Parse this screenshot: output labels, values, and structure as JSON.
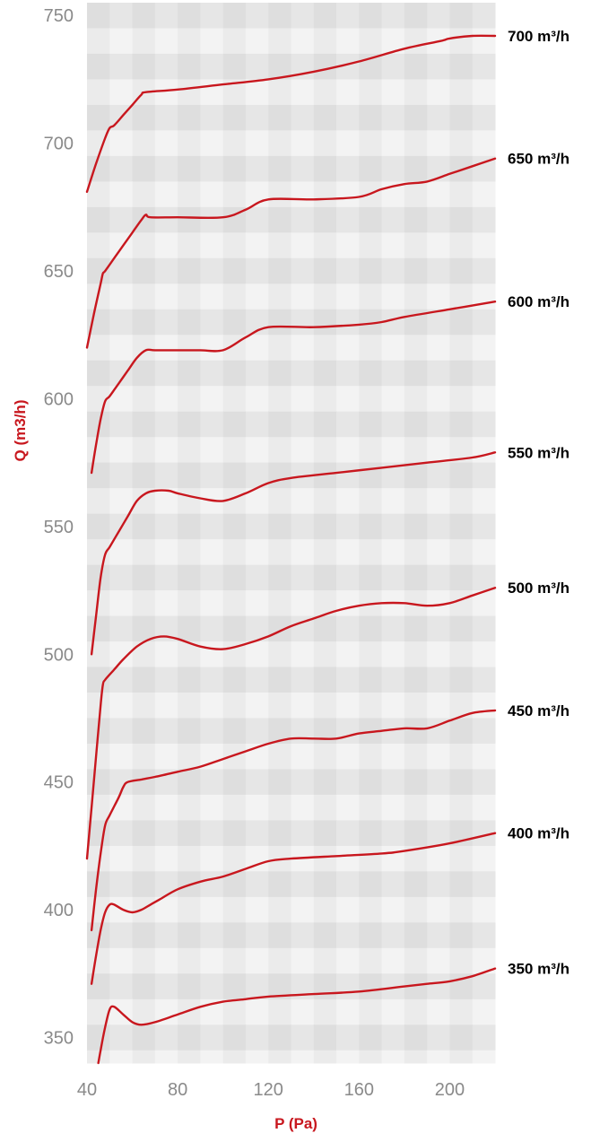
{
  "chart_data": {
    "type": "line",
    "title": "",
    "xlabel": "P (Pa)",
    "ylabel": "Q (m3/h)",
    "xlim": [
      40,
      220
    ],
    "ylim": [
      340,
      755
    ],
    "x_ticks": [
      40,
      80,
      120,
      160,
      200
    ],
    "y_ticks": [
      350,
      400,
      450,
      500,
      550,
      600,
      650,
      700,
      750
    ],
    "grid": true,
    "colors": {
      "line": "#c8171e",
      "axis_title": "#c8171e",
      "grid_dark": "#e2e2e2",
      "grid_light": "#f3f3f3"
    },
    "series": [
      {
        "name": "700 m³/h",
        "points": [
          [
            40,
            681
          ],
          [
            44,
            692
          ],
          [
            48,
            702
          ],
          [
            50,
            706
          ],
          [
            52,
            707
          ],
          [
            56,
            711
          ],
          [
            60,
            715
          ],
          [
            64,
            719
          ],
          [
            66,
            720
          ],
          [
            80,
            721
          ],
          [
            100,
            723
          ],
          [
            120,
            725
          ],
          [
            140,
            728
          ],
          [
            160,
            732
          ],
          [
            180,
            737
          ],
          [
            196,
            740
          ],
          [
            200,
            741
          ],
          [
            210,
            742
          ],
          [
            220,
            742
          ]
        ]
      },
      {
        "name": "650 m³/h",
        "points": [
          [
            40,
            620
          ],
          [
            43,
            633
          ],
          [
            46,
            645
          ],
          [
            47,
            649
          ],
          [
            48,
            650
          ],
          [
            52,
            655
          ],
          [
            56,
            660
          ],
          [
            60,
            665
          ],
          [
            64,
            670
          ],
          [
            66,
            672
          ],
          [
            68,
            671
          ],
          [
            80,
            671
          ],
          [
            100,
            671
          ],
          [
            110,
            674
          ],
          [
            120,
            678
          ],
          [
            140,
            678
          ],
          [
            160,
            679
          ],
          [
            170,
            682
          ],
          [
            180,
            684
          ],
          [
            190,
            685
          ],
          [
            200,
            688
          ],
          [
            210,
            691
          ],
          [
            220,
            694
          ]
        ]
      },
      {
        "name": "600 m³/h",
        "points": [
          [
            42,
            571
          ],
          [
            44,
            582
          ],
          [
            46,
            592
          ],
          [
            48,
            599
          ],
          [
            50,
            601
          ],
          [
            54,
            606
          ],
          [
            58,
            611
          ],
          [
            62,
            616
          ],
          [
            66,
            619
          ],
          [
            70,
            619
          ],
          [
            80,
            619
          ],
          [
            90,
            619
          ],
          [
            100,
            619
          ],
          [
            110,
            624
          ],
          [
            120,
            628
          ],
          [
            140,
            628
          ],
          [
            160,
            629
          ],
          [
            170,
            630
          ],
          [
            180,
            632
          ],
          [
            200,
            635
          ],
          [
            220,
            638
          ]
        ]
      },
      {
        "name": "550 m³/h",
        "points": [
          [
            42,
            500
          ],
          [
            44,
            515
          ],
          [
            46,
            530
          ],
          [
            48,
            539
          ],
          [
            50,
            542
          ],
          [
            54,
            548
          ],
          [
            58,
            554
          ],
          [
            62,
            560
          ],
          [
            66,
            563
          ],
          [
            70,
            564
          ],
          [
            76,
            564
          ],
          [
            80,
            563
          ],
          [
            90,
            561
          ],
          [
            100,
            560
          ],
          [
            110,
            563
          ],
          [
            120,
            567
          ],
          [
            130,
            569
          ],
          [
            150,
            571
          ],
          [
            170,
            573
          ],
          [
            190,
            575
          ],
          [
            210,
            577
          ],
          [
            220,
            579
          ]
        ]
      },
      {
        "name": "500 m³/h",
        "points": [
          [
            40,
            420
          ],
          [
            42,
            440
          ],
          [
            44,
            460
          ],
          [
            46,
            480
          ],
          [
            47,
            488
          ],
          [
            48,
            490
          ],
          [
            52,
            494
          ],
          [
            56,
            498
          ],
          [
            62,
            503
          ],
          [
            68,
            506
          ],
          [
            74,
            507
          ],
          [
            80,
            506
          ],
          [
            90,
            503
          ],
          [
            100,
            502
          ],
          [
            110,
            504
          ],
          [
            120,
            507
          ],
          [
            130,
            511
          ],
          [
            140,
            514
          ],
          [
            150,
            517
          ],
          [
            160,
            519
          ],
          [
            170,
            520
          ],
          [
            180,
            520
          ],
          [
            190,
            519
          ],
          [
            200,
            520
          ],
          [
            210,
            523
          ],
          [
            220,
            526
          ]
        ]
      },
      {
        "name": "450 m³/h",
        "points": [
          [
            42,
            392
          ],
          [
            44,
            408
          ],
          [
            46,
            422
          ],
          [
            48,
            433
          ],
          [
            50,
            437
          ],
          [
            54,
            444
          ],
          [
            56,
            448
          ],
          [
            58,
            450
          ],
          [
            64,
            451
          ],
          [
            70,
            452
          ],
          [
            80,
            454
          ],
          [
            90,
            456
          ],
          [
            100,
            459
          ],
          [
            110,
            462
          ],
          [
            120,
            465
          ],
          [
            130,
            467
          ],
          [
            140,
            467
          ],
          [
            150,
            467
          ],
          [
            160,
            469
          ],
          [
            170,
            470
          ],
          [
            180,
            471
          ],
          [
            190,
            471
          ],
          [
            200,
            474
          ],
          [
            210,
            477
          ],
          [
            220,
            478
          ]
        ]
      },
      {
        "name": "400 m³/h",
        "points": [
          [
            42,
            371
          ],
          [
            44,
            382
          ],
          [
            46,
            392
          ],
          [
            48,
            399
          ],
          [
            50,
            402
          ],
          [
            52,
            402
          ],
          [
            56,
            400
          ],
          [
            60,
            399
          ],
          [
            64,
            400
          ],
          [
            68,
            402
          ],
          [
            72,
            404
          ],
          [
            80,
            408
          ],
          [
            90,
            411
          ],
          [
            100,
            413
          ],
          [
            110,
            416
          ],
          [
            120,
            419
          ],
          [
            130,
            420
          ],
          [
            150,
            421
          ],
          [
            170,
            422
          ],
          [
            180,
            423
          ],
          [
            200,
            426
          ],
          [
            220,
            430
          ]
        ]
      },
      {
        "name": "350 m³/h",
        "points": [
          [
            45,
            340
          ],
          [
            46,
            345
          ],
          [
            48,
            354
          ],
          [
            50,
            361
          ],
          [
            52,
            362
          ],
          [
            56,
            359
          ],
          [
            60,
            356
          ],
          [
            64,
            355
          ],
          [
            70,
            356
          ],
          [
            80,
            359
          ],
          [
            90,
            362
          ],
          [
            100,
            364
          ],
          [
            110,
            365
          ],
          [
            120,
            366
          ],
          [
            140,
            367
          ],
          [
            160,
            368
          ],
          [
            180,
            370
          ],
          [
            190,
            371
          ],
          [
            200,
            372
          ],
          [
            210,
            374
          ],
          [
            220,
            377
          ]
        ]
      }
    ]
  }
}
